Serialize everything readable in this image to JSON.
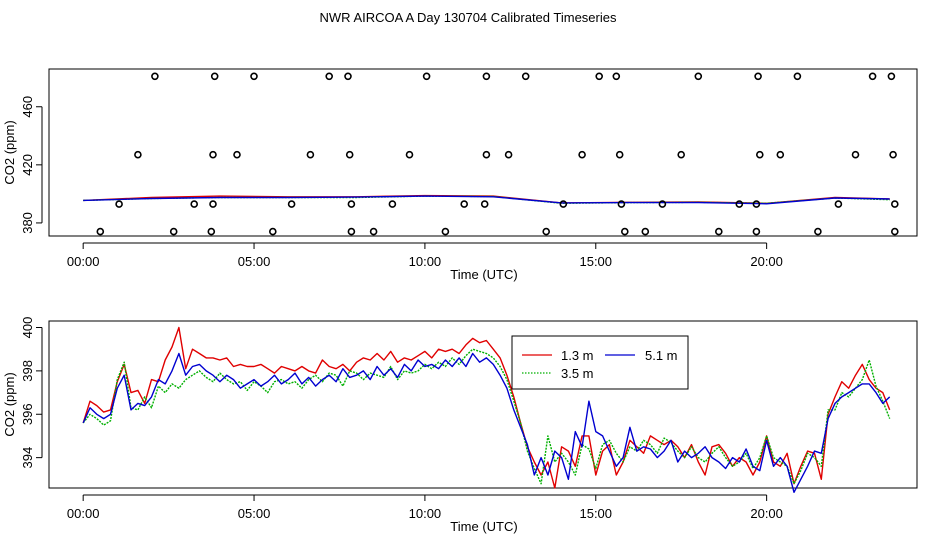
{
  "title": "NWR AIRCOA A  Day 130704  Calibrated Timeseries",
  "colors": {
    "s1": "#e00000",
    "s2": "#00b000",
    "s3": "#0000d0",
    "axis": "#000000",
    "background": "#ffffff"
  },
  "chart_data": [
    {
      "type": "scatter+line",
      "ylabel": "CO2 (ppm)",
      "xlabel": "Time (UTC)",
      "xlim": [
        -1,
        24.4
      ],
      "ylim": [
        371,
        486
      ],
      "xticks": [
        0,
        5,
        10,
        15,
        20
      ],
      "xtick_labels": [
        "00:00",
        "05:00",
        "10:00",
        "15:00",
        "20:00"
      ],
      "yticks": [
        380,
        420,
        460
      ],
      "ytick_labels": [
        "380",
        "420",
        "460"
      ],
      "calibration_points": [
        [
          2.1,
          481
        ],
        [
          3.85,
          481
        ],
        [
          5.0,
          481
        ],
        [
          7.2,
          481
        ],
        [
          7.75,
          481
        ],
        [
          10.05,
          481
        ],
        [
          11.8,
          481
        ],
        [
          12.95,
          481
        ],
        [
          15.1,
          481
        ],
        [
          15.6,
          481
        ],
        [
          18.0,
          481
        ],
        [
          19.75,
          481
        ],
        [
          20.9,
          481
        ],
        [
          23.1,
          481
        ],
        [
          23.65,
          481
        ],
        [
          1.6,
          427
        ],
        [
          3.8,
          427
        ],
        [
          4.5,
          427
        ],
        [
          6.65,
          427
        ],
        [
          7.8,
          427
        ],
        [
          9.55,
          427
        ],
        [
          11.8,
          427
        ],
        [
          12.45,
          427
        ],
        [
          14.6,
          427
        ],
        [
          15.7,
          427
        ],
        [
          17.5,
          427
        ],
        [
          19.8,
          427
        ],
        [
          20.4,
          427
        ],
        [
          22.6,
          427
        ],
        [
          23.7,
          427
        ],
        [
          1.05,
          393
        ],
        [
          3.25,
          393
        ],
        [
          3.8,
          393
        ],
        [
          6.1,
          393
        ],
        [
          7.85,
          393
        ],
        [
          9.05,
          393
        ],
        [
          11.15,
          393
        ],
        [
          11.75,
          393
        ],
        [
          14.05,
          393
        ],
        [
          15.75,
          393
        ],
        [
          16.95,
          393
        ],
        [
          19.2,
          393
        ],
        [
          19.7,
          393
        ],
        [
          22.1,
          393
        ],
        [
          23.75,
          393
        ],
        [
          0.5,
          374
        ],
        [
          2.65,
          374
        ],
        [
          3.75,
          374
        ],
        [
          5.55,
          374
        ],
        [
          7.85,
          374
        ],
        [
          8.5,
          374
        ],
        [
          10.6,
          374
        ],
        [
          13.55,
          374
        ],
        [
          15.85,
          374
        ],
        [
          16.45,
          374
        ],
        [
          18.6,
          374
        ],
        [
          19.7,
          374
        ],
        [
          21.5,
          374
        ],
        [
          23.75,
          374
        ]
      ],
      "series": [
        {
          "name": "1.3 m",
          "x": [
            0,
            2,
            4,
            6,
            8,
            10,
            12,
            14,
            16,
            18,
            20,
            22,
            23.6
          ],
          "y": [
            395.5,
            397.5,
            398.5,
            398.0,
            398.0,
            398.8,
            398.5,
            393.8,
            394.2,
            394.5,
            393.5,
            397.5,
            396.5
          ]
        },
        {
          "name": "3.5 m",
          "x": [
            0,
            2,
            4,
            6,
            8,
            10,
            12,
            14,
            16,
            18,
            20,
            22,
            23.6
          ],
          "y": [
            395.5,
            396.8,
            397.5,
            397.5,
            397.5,
            398.5,
            398.2,
            393.5,
            394.0,
            394.2,
            393.5,
            397.2,
            396.0
          ]
        },
        {
          "name": "5.1 m",
          "x": [
            0,
            2,
            4,
            6,
            8,
            10,
            12,
            14,
            16,
            18,
            20,
            22,
            23.6
          ],
          "y": [
            395.5,
            396.8,
            397.5,
            397.5,
            397.8,
            398.5,
            398.0,
            393.8,
            394.0,
            394.0,
            393.2,
            397.2,
            396.5
          ]
        }
      ]
    },
    {
      "type": "line",
      "ylabel": "CO2 (ppm)",
      "xlabel": "Time (UTC)",
      "xlim": [
        -1,
        24.4
      ],
      "ylim": [
        392.6,
        400.3
      ],
      "xticks": [
        0,
        5,
        10,
        15,
        20
      ],
      "xtick_labels": [
        "00:00",
        "05:00",
        "10:00",
        "15:00",
        "20:00"
      ],
      "yticks": [
        394,
        396,
        398,
        400
      ],
      "ytick_labels": [
        "394",
        "396",
        "398",
        "400"
      ],
      "legend": {
        "placement": "top-right",
        "entries": [
          "1.3 m",
          "3.5 m",
          "5.1 m"
        ]
      },
      "series": [
        {
          "name": "1.3 m",
          "x": [
            0,
            0.2,
            0.4,
            0.6,
            0.8,
            1.0,
            1.2,
            1.4,
            1.6,
            1.8,
            2.0,
            2.2,
            2.4,
            2.6,
            2.8,
            3.0,
            3.2,
            3.4,
            3.6,
            3.8,
            4.0,
            4.2,
            4.4,
            4.6,
            4.8,
            5.0,
            5.2,
            5.4,
            5.6,
            5.8,
            6.0,
            6.2,
            6.4,
            6.6,
            6.8,
            7.0,
            7.2,
            7.4,
            7.6,
            7.8,
            8.0,
            8.2,
            8.4,
            8.6,
            8.8,
            9.0,
            9.2,
            9.4,
            9.6,
            9.8,
            10.0,
            10.2,
            10.4,
            10.6,
            10.8,
            11.0,
            11.2,
            11.4,
            11.6,
            11.8,
            12.0,
            12.2,
            12.4,
            12.6,
            12.8,
            13.0,
            13.2,
            13.4,
            13.6,
            13.8,
            14.0,
            14.2,
            14.4,
            14.6,
            14.8,
            15.0,
            15.2,
            15.4,
            15.6,
            15.8,
            16.0,
            16.2,
            16.4,
            16.6,
            16.8,
            17.0,
            17.2,
            17.4,
            17.6,
            17.8,
            18.0,
            18.2,
            18.4,
            18.6,
            18.8,
            19.0,
            19.2,
            19.4,
            19.6,
            19.8,
            20.0,
            20.2,
            20.4,
            20.6,
            20.8,
            21.0,
            21.2,
            21.4,
            21.6,
            21.8,
            22.0,
            22.2,
            22.4,
            22.6,
            22.8,
            23.0,
            23.2,
            23.4,
            23.6
          ],
          "y": [
            395.6,
            396.6,
            396.4,
            396.1,
            396.2,
            397.5,
            398.3,
            397.0,
            397.1,
            396.5,
            397.6,
            397.5,
            398.5,
            399.1,
            400.0,
            398.1,
            399.0,
            398.8,
            398.6,
            398.6,
            398.5,
            398.6,
            398.2,
            398.3,
            398.2,
            398.2,
            398.3,
            398.1,
            397.9,
            398.2,
            398.1,
            398.0,
            398.2,
            398.0,
            397.9,
            398.5,
            398.2,
            398.1,
            398.3,
            398.0,
            398.4,
            398.6,
            398.5,
            398.8,
            398.5,
            398.9,
            398.4,
            398.6,
            398.5,
            398.7,
            398.9,
            398.6,
            399.0,
            398.9,
            399.0,
            398.8,
            399.2,
            399.5,
            399.3,
            399.4,
            399.0,
            398.6,
            397.8,
            396.8,
            395.6,
            394.5,
            393.8,
            393.2,
            393.8,
            392.6,
            394.5,
            394.3,
            393.6,
            395.0,
            395.0,
            393.2,
            394.3,
            394.6,
            393.2,
            393.8,
            394.8,
            394.5,
            394.2,
            395.0,
            394.8,
            394.6,
            394.8,
            394.5,
            394.0,
            394.6,
            393.8,
            393.2,
            394.5,
            394.6,
            394.2,
            393.6,
            394.0,
            393.8,
            393.2,
            393.8,
            395.0,
            393.8,
            393.6,
            394.2,
            392.8,
            393.6,
            394.3,
            394.2,
            393.0,
            396.0,
            396.8,
            397.5,
            397.2,
            397.8,
            398.3,
            397.6,
            397.2,
            397.0,
            396.2
          ]
        },
        {
          "name": "3.5 m",
          "x": [
            0,
            0.2,
            0.4,
            0.6,
            0.8,
            1.0,
            1.2,
            1.4,
            1.6,
            1.8,
            2.0,
            2.2,
            2.4,
            2.6,
            2.8,
            3.0,
            3.2,
            3.4,
            3.6,
            3.8,
            4.0,
            4.2,
            4.4,
            4.6,
            4.8,
            5.0,
            5.2,
            5.4,
            5.6,
            5.8,
            6.0,
            6.2,
            6.4,
            6.6,
            6.8,
            7.0,
            7.2,
            7.4,
            7.6,
            7.8,
            8.0,
            8.2,
            8.4,
            8.6,
            8.8,
            9.0,
            9.2,
            9.4,
            9.6,
            9.8,
            10.0,
            10.2,
            10.4,
            10.6,
            10.8,
            11.0,
            11.2,
            11.4,
            11.6,
            11.8,
            12.0,
            12.2,
            12.4,
            12.6,
            12.8,
            13.0,
            13.2,
            13.4,
            13.6,
            13.8,
            14.0,
            14.2,
            14.4,
            14.6,
            14.8,
            15.0,
            15.2,
            15.4,
            15.6,
            15.8,
            16.0,
            16.2,
            16.4,
            16.6,
            16.8,
            17.0,
            17.2,
            17.4,
            17.6,
            17.8,
            18.0,
            18.2,
            18.4,
            18.6,
            18.8,
            19.0,
            19.2,
            19.4,
            19.6,
            19.8,
            20.0,
            20.2,
            20.4,
            20.6,
            20.8,
            21.0,
            21.2,
            21.4,
            21.6,
            21.8,
            22.0,
            22.2,
            22.4,
            22.6,
            22.8,
            23.0,
            23.2,
            23.4,
            23.6
          ],
          "y": [
            395.6,
            396.0,
            395.8,
            395.5,
            395.7,
            397.6,
            398.4,
            396.3,
            396.2,
            396.8,
            396.3,
            397.3,
            397.0,
            397.4,
            397.2,
            397.6,
            397.8,
            398.0,
            397.7,
            397.5,
            397.9,
            397.6,
            397.4,
            397.5,
            397.1,
            397.5,
            397.3,
            397.0,
            397.5,
            397.6,
            397.4,
            397.5,
            397.2,
            397.6,
            397.8,
            397.5,
            397.9,
            397.8,
            397.3,
            398.0,
            397.9,
            397.6,
            397.9,
            397.8,
            397.7,
            398.2,
            397.6,
            398.0,
            397.9,
            398.0,
            398.3,
            398.1,
            398.4,
            398.2,
            398.6,
            398.3,
            398.7,
            399.0,
            398.9,
            398.8,
            398.6,
            398.2,
            397.6,
            396.6,
            395.6,
            394.3,
            393.5,
            392.8,
            395.0,
            393.8,
            394.2,
            393.8,
            393.2,
            394.6,
            394.4,
            393.5,
            394.6,
            394.8,
            394.2,
            393.8,
            394.5,
            394.3,
            394.8,
            394.6,
            394.2,
            394.9,
            394.7,
            394.3,
            394.0,
            394.5,
            394.0,
            393.8,
            394.2,
            394.5,
            394.0,
            393.6,
            393.8,
            394.2,
            393.5,
            394.0,
            395.0,
            394.0,
            393.8,
            393.6,
            392.8,
            393.4,
            394.2,
            394.0,
            393.6,
            396.2,
            396.2,
            397.0,
            396.8,
            397.2,
            397.6,
            398.5,
            397.3,
            396.6,
            395.8
          ]
        },
        {
          "name": "5.1 m",
          "x": [
            0,
            0.2,
            0.4,
            0.6,
            0.8,
            1.0,
            1.2,
            1.4,
            1.6,
            1.8,
            2.0,
            2.2,
            2.4,
            2.6,
            2.8,
            3.0,
            3.2,
            3.4,
            3.6,
            3.8,
            4.0,
            4.2,
            4.4,
            4.6,
            4.8,
            5.0,
            5.2,
            5.4,
            5.6,
            5.8,
            6.0,
            6.2,
            6.4,
            6.6,
            6.8,
            7.0,
            7.2,
            7.4,
            7.6,
            7.8,
            8.0,
            8.2,
            8.4,
            8.6,
            8.8,
            9.0,
            9.2,
            9.4,
            9.6,
            9.8,
            10.0,
            10.2,
            10.4,
            10.6,
            10.8,
            11.0,
            11.2,
            11.4,
            11.6,
            11.8,
            12.0,
            12.2,
            12.4,
            12.6,
            12.8,
            13.0,
            13.2,
            13.4,
            13.6,
            13.8,
            14.0,
            14.2,
            14.4,
            14.6,
            14.8,
            15.0,
            15.2,
            15.4,
            15.6,
            15.8,
            16.0,
            16.2,
            16.4,
            16.6,
            16.8,
            17.0,
            17.2,
            17.4,
            17.6,
            17.8,
            18.0,
            18.2,
            18.4,
            18.6,
            18.8,
            19.0,
            19.2,
            19.4,
            19.6,
            19.8,
            20.0,
            20.2,
            20.4,
            20.6,
            20.8,
            21.0,
            21.2,
            21.4,
            21.6,
            21.8,
            22.0,
            22.2,
            22.4,
            22.6,
            22.8,
            23.0,
            23.2,
            23.4,
            23.6
          ],
          "y": [
            395.6,
            396.3,
            396.0,
            395.8,
            396.0,
            397.2,
            397.8,
            396.2,
            396.5,
            396.4,
            396.8,
            397.6,
            397.4,
            398.0,
            398.8,
            397.8,
            398.2,
            398.3,
            398.0,
            397.8,
            397.5,
            397.8,
            397.6,
            397.2,
            397.4,
            397.6,
            397.3,
            397.5,
            397.8,
            397.4,
            397.6,
            397.9,
            397.4,
            397.7,
            397.3,
            397.6,
            397.8,
            397.5,
            398.1,
            397.7,
            397.8,
            398.0,
            397.6,
            398.2,
            397.8,
            398.1,
            397.7,
            398.3,
            398.0,
            398.5,
            398.2,
            398.3,
            398.1,
            398.5,
            398.2,
            398.6,
            398.2,
            398.8,
            398.4,
            398.6,
            398.3,
            397.8,
            397.2,
            396.2,
            395.4,
            394.6,
            393.2,
            394.0,
            393.2,
            394.3,
            394.0,
            393.0,
            395.2,
            394.5,
            396.6,
            395.2,
            395.0,
            394.3,
            393.6,
            394.0,
            395.4,
            394.3,
            394.5,
            394.4,
            394.0,
            394.3,
            394.8,
            393.8,
            394.3,
            394.0,
            394.2,
            394.5,
            394.0,
            393.8,
            393.5,
            394.0,
            393.8,
            394.4,
            393.6,
            393.4,
            394.8,
            393.6,
            394.0,
            393.6,
            392.4,
            393.0,
            393.6,
            394.3,
            394.2,
            395.8,
            396.5,
            396.8,
            397.0,
            397.2,
            397.4,
            397.4,
            397.0,
            396.5,
            396.8
          ]
        }
      ]
    }
  ]
}
